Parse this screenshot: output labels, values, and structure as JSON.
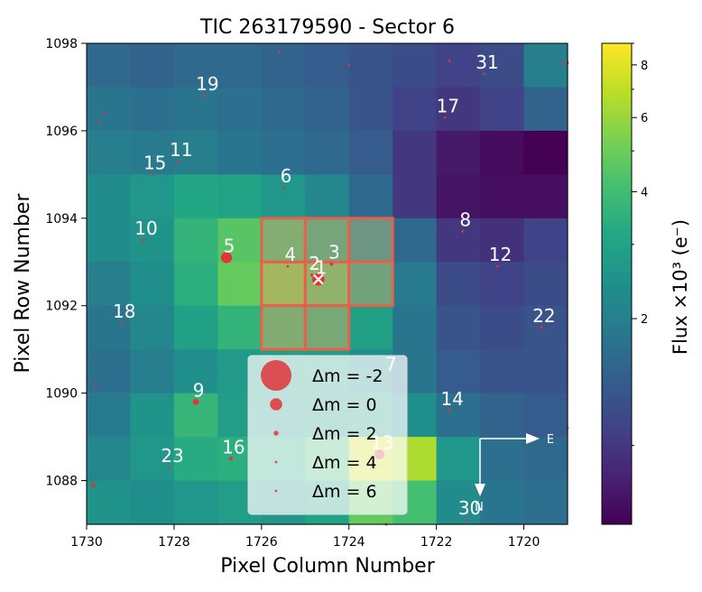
{
  "chart_data": {
    "type": "heatmap",
    "title": "TIC 263179590 - Sector 6",
    "xlabel": "Pixel Column Number",
    "ylabel": "Pixel Row Number",
    "xlim": [
      1730,
      1719
    ],
    "ylim": [
      1087,
      1098
    ],
    "x_ticks": [
      1730,
      1728,
      1726,
      1724,
      1722,
      1720
    ],
    "y_ticks": [
      1088,
      1090,
      1092,
      1094,
      1096,
      1098
    ],
    "colorbar": {
      "label": "Flux ×10³ (e⁻)",
      "scale": "log",
      "range": [
        0.65,
        9.0
      ],
      "ticks": [
        2,
        4,
        6,
        8
      ]
    },
    "flux_grid_rows_top_to_bottom": [
      [
        1.6,
        1.5,
        1.6,
        1.6,
        1.5,
        1.4,
        1.3,
        1.2,
        1.1,
        1.2,
        2.0
      ],
      [
        1.8,
        1.7,
        1.8,
        1.7,
        1.6,
        1.5,
        1.3,
        1.1,
        1.0,
        1.1,
        1.5
      ],
      [
        2.0,
        1.9,
        2.0,
        1.8,
        1.7,
        1.6,
        1.4,
        1.0,
        0.78,
        0.7,
        0.65
      ],
      [
        2.3,
        2.6,
        3.1,
        3.0,
        2.6,
        2.2,
        1.6,
        1.0,
        0.75,
        0.72,
        0.72
      ],
      [
        2.3,
        2.5,
        3.6,
        4.5,
        4.3,
        3.6,
        2.6,
        1.6,
        1.0,
        0.95,
        1.1
      ],
      [
        2.0,
        2.4,
        3.4,
        4.8,
        5.6,
        4.8,
        3.4,
        1.9,
        1.2,
        1.1,
        1.2
      ],
      [
        1.8,
        2.2,
        2.9,
        3.6,
        4.2,
        3.8,
        2.9,
        1.8,
        1.3,
        1.2,
        1.3
      ],
      [
        1.7,
        2.0,
        2.4,
        2.7,
        2.9,
        2.8,
        2.4,
        1.8,
        1.4,
        1.3,
        1.3
      ],
      [
        1.9,
        2.5,
        3.7,
        2.8,
        2.6,
        2.7,
        3.0,
        2.4,
        1.7,
        1.5,
        1.4
      ],
      [
        2.2,
        2.6,
        3.3,
        3.4,
        3.2,
        4.0,
        7.5,
        6.5,
        2.6,
        1.7,
        1.6
      ],
      [
        2.5,
        2.4,
        2.6,
        2.8,
        2.6,
        3.0,
        4.8,
        4.1,
        2.3,
        1.8,
        1.7
      ]
    ],
    "aperture_pixels": [
      {
        "col": 1725.5,
        "row": 1093.5
      },
      {
        "col": 1724.5,
        "row": 1093.5
      },
      {
        "col": 1723.5,
        "row": 1093.5
      },
      {
        "col": 1725.5,
        "row": 1092.5
      },
      {
        "col": 1724.5,
        "row": 1092.5
      },
      {
        "col": 1723.5,
        "row": 1092.5
      },
      {
        "col": 1725.5,
        "row": 1091.5
      },
      {
        "col": 1724.5,
        "row": 1091.5
      }
    ],
    "stars": [
      {
        "label": "1",
        "col": 1724.7,
        "row": 1092.6,
        "dm": 0
      },
      {
        "label": "2",
        "col": 1724.85,
        "row": 1092.7,
        "dm": 3
      },
      {
        "label": "3",
        "col": 1724.4,
        "row": 1092.95,
        "dm": 2.8
      },
      {
        "label": "4",
        "col": 1725.4,
        "row": 1092.9,
        "dm": 4.5
      },
      {
        "label": "5",
        "col": 1726.8,
        "row": 1093.1,
        "dm": 0.2
      },
      {
        "label": "6",
        "col": 1725.5,
        "row": 1094.7,
        "dm": 5
      },
      {
        "label": "7",
        "col": 1723.1,
        "row": 1090.4,
        "dm": 5.5
      },
      {
        "label": "8",
        "col": 1721.4,
        "row": 1093.7,
        "dm": 5.5
      },
      {
        "label": "9",
        "col": 1727.5,
        "row": 1089.8,
        "dm": 1.5
      },
      {
        "label": "10",
        "col": 1728.7,
        "row": 1093.5,
        "dm": 3
      },
      {
        "label": "11",
        "col": 1727.9,
        "row": 1095.3,
        "dm": 5.5
      },
      {
        "label": "12",
        "col": 1720.6,
        "row": 1092.9,
        "dm": 5
      },
      {
        "label": "13",
        "col": 1723.3,
        "row": 1088.6,
        "dm": 0.5
      },
      {
        "label": "14",
        "col": 1721.7,
        "row": 1089.6,
        "dm": 5
      },
      {
        "label": "15",
        "col": 1728.5,
        "row": 1095.0,
        "dm": 5.5
      },
      {
        "label": "16",
        "col": 1726.7,
        "row": 1088.5,
        "dm": 2.5
      },
      {
        "label": "17",
        "col": 1721.8,
        "row": 1096.3,
        "dm": 5.5
      },
      {
        "label": "18",
        "col": 1729.2,
        "row": 1091.6,
        "dm": 5.5
      },
      {
        "label": "19",
        "col": 1727.3,
        "row": 1096.8,
        "dm": 5
      },
      {
        "label": "22",
        "col": 1719.6,
        "row": 1091.5,
        "dm": 5.5
      },
      {
        "label": "23",
        "col": 1728.1,
        "row": 1088.3,
        "dm": 5
      },
      {
        "label": "30",
        "col": 1721.3,
        "row": 1087.1,
        "dm": 5.5
      },
      {
        "label": "31",
        "col": 1720.9,
        "row": 1097.3,
        "dm": 5.5
      },
      {
        "label": "",
        "col": 1725.6,
        "row": 1097.8,
        "dm": 5.5
      },
      {
        "label": "",
        "col": 1724.0,
        "row": 1097.5,
        "dm": 5.5
      },
      {
        "label": "",
        "col": 1721.7,
        "row": 1097.6,
        "dm": 5.5
      },
      {
        "label": "",
        "col": 1719.1,
        "row": 1097.55,
        "dm": 4.5
      },
      {
        "label": "",
        "col": 1719.0,
        "row": 1097.55,
        "dm": 4.5
      },
      {
        "label": "",
        "col": 1729.6,
        "row": 1096.4,
        "dm": 5.5
      },
      {
        "label": "",
        "col": 1729.7,
        "row": 1096.2,
        "dm": 5.5
      },
      {
        "label": "",
        "col": 1729.8,
        "row": 1090.2,
        "dm": 5
      },
      {
        "label": "",
        "col": 1729.85,
        "row": 1087.9,
        "dm": 2.2
      },
      {
        "label": "",
        "col": 1723.15,
        "row": 1087.0,
        "dm": 5.5
      },
      {
        "label": "",
        "col": 1719.0,
        "row": 1089.2,
        "dm": 5.5
      }
    ],
    "legend": {
      "placement": "lower-center",
      "entries": [
        {
          "label": "Δm =  -2",
          "dm": -2
        },
        {
          "label": "Δm =  0",
          "dm": 0
        },
        {
          "label": "Δm =  2",
          "dm": 2
        },
        {
          "label": "Δm =  4",
          "dm": 4
        },
        {
          "label": "Δm =  6",
          "dm": 6
        }
      ]
    },
    "compass": {
      "east": "E",
      "north": "N"
    }
  },
  "colors": {
    "star_fill": "#e0343a",
    "aperture_edge": "#e8604c",
    "text": "#000000",
    "label": "#ffffff"
  }
}
